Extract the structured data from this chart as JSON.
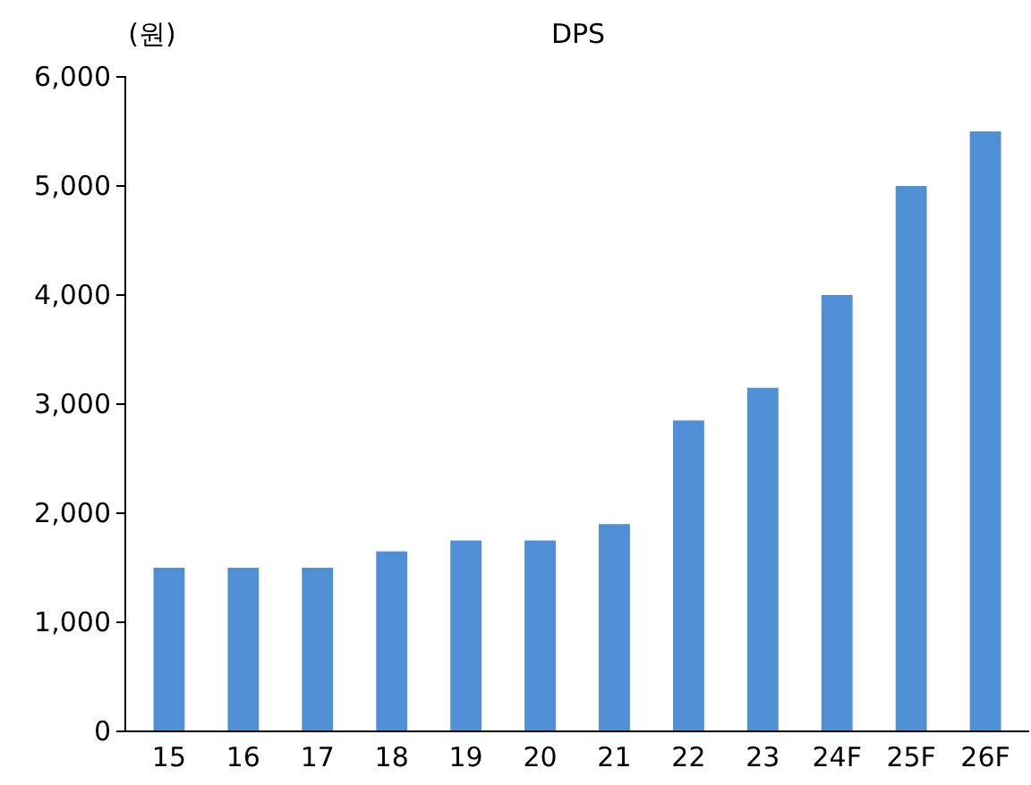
{
  "chart_data": {
    "type": "bar",
    "title": "DPS",
    "ylabel": "(원)",
    "categories": [
      "15",
      "16",
      "17",
      "18",
      "19",
      "20",
      "21",
      "22",
      "23",
      "24F",
      "25F",
      "26F"
    ],
    "values": [
      1500,
      1500,
      1500,
      1650,
      1750,
      1750,
      1900,
      2850,
      3150,
      4000,
      5000,
      5500
    ],
    "color": "#4f8fd6",
    "ylim": [
      0,
      6000
    ],
    "yticks": [
      {
        "value": 0,
        "label": "0"
      },
      {
        "value": 1000,
        "label": "1,000"
      },
      {
        "value": 2000,
        "label": "2,000"
      },
      {
        "value": 3000,
        "label": "3,000"
      },
      {
        "value": 4000,
        "label": "4,000"
      },
      {
        "value": 5000,
        "label": "5,000"
      },
      {
        "value": 6000,
        "label": "6,000"
      }
    ],
    "grid": false
  }
}
